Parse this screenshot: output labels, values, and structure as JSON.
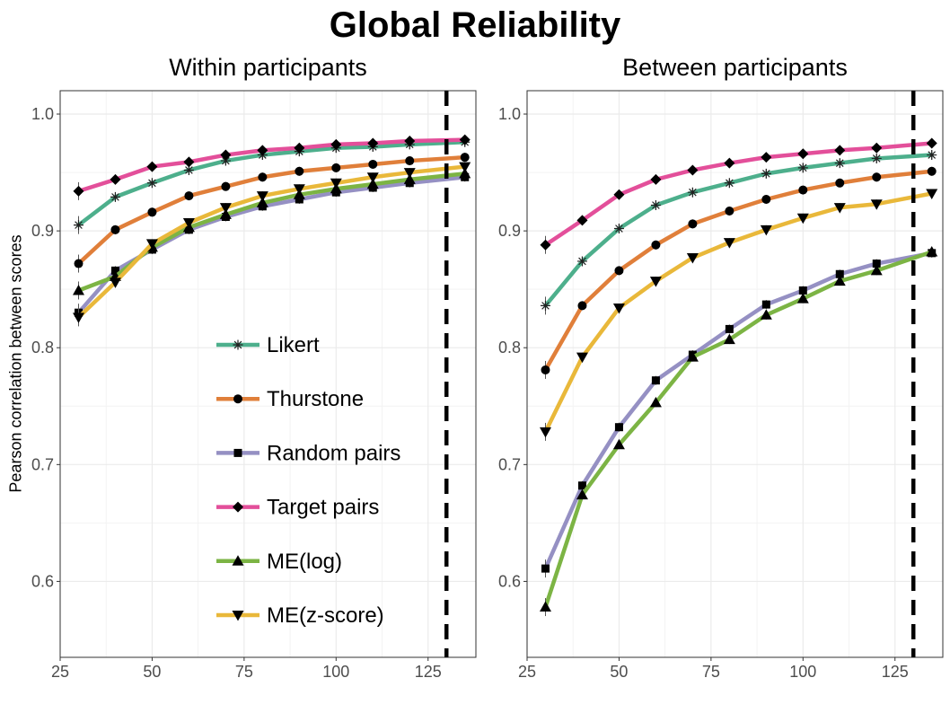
{
  "title": "Global Reliability",
  "ylabel": "Pearson correlation between scores",
  "colors": {
    "Likert": "#4daf8c",
    "Thurstone": "#e07f3a",
    "Random pairs": "#9590c3",
    "Target pairs": "#e34f9a",
    "ME(log)": "#7cb444",
    "ME(z-score)": "#e9b83a"
  },
  "markers": {
    "Likert": "asterisk",
    "Thurstone": "circle",
    "Random pairs": "square",
    "Target pairs": "diamond",
    "ME(log)": "triangle-up",
    "ME(z-score)": "triangle-down"
  },
  "legend": [
    "Likert",
    "Thurstone",
    "Random pairs",
    "Target pairs",
    "ME(log)",
    "ME(z-score)"
  ],
  "chart_data": [
    {
      "type": "line",
      "title": "Within participants",
      "xlim": [
        25,
        138
      ],
      "ylim": [
        0.535,
        1.02
      ],
      "xticks": [
        25,
        50,
        75,
        100,
        125
      ],
      "yticks": [
        0.6,
        0.7,
        0.8,
        0.9,
        1.0
      ],
      "ytick_labels": [
        "0.6",
        "0.7",
        "0.8",
        "0.9",
        "1.0"
      ],
      "vline": 130,
      "grid": true,
      "legend_position": "inside-bottom-right",
      "x": [
        30,
        40,
        50,
        60,
        70,
        80,
        90,
        100,
        110,
        120,
        135
      ],
      "series": [
        {
          "name": "Likert",
          "values": [
            0.905,
            0.929,
            0.941,
            0.952,
            0.96,
            0.965,
            0.968,
            0.971,
            0.972,
            0.974,
            0.976
          ]
        },
        {
          "name": "Thurstone",
          "values": [
            0.872,
            0.901,
            0.916,
            0.93,
            0.938,
            0.946,
            0.951,
            0.954,
            0.957,
            0.96,
            0.963
          ]
        },
        {
          "name": "Random pairs",
          "values": [
            0.83,
            0.866,
            0.884,
            0.901,
            0.912,
            0.921,
            0.927,
            0.933,
            0.937,
            0.941,
            0.946
          ]
        },
        {
          "name": "Target pairs",
          "values": [
            0.934,
            0.944,
            0.955,
            0.959,
            0.965,
            0.969,
            0.971,
            0.974,
            0.975,
            0.977,
            0.978
          ]
        },
        {
          "name": "ME(log)",
          "values": [
            0.849,
            0.861,
            0.886,
            0.903,
            0.914,
            0.924,
            0.931,
            0.936,
            0.94,
            0.944,
            0.949
          ]
        },
        {
          "name": "ME(z-score)",
          "values": [
            0.826,
            0.856,
            0.889,
            0.907,
            0.92,
            0.93,
            0.936,
            0.941,
            0.946,
            0.95,
            0.955
          ]
        }
      ]
    },
    {
      "type": "line",
      "title": "Between participants",
      "xlim": [
        25,
        138
      ],
      "ylim": [
        0.535,
        1.02
      ],
      "xticks": [
        25,
        50,
        75,
        100,
        125
      ],
      "yticks": [
        0.6,
        0.7,
        0.8,
        0.9,
        1.0
      ],
      "ytick_labels": [
        "0.6",
        "0.7",
        "0.8",
        "0.9",
        "1.0"
      ],
      "vline": 130,
      "grid": true,
      "x": [
        30,
        40,
        50,
        60,
        70,
        80,
        90,
        100,
        110,
        120,
        135
      ],
      "series": [
        {
          "name": "Likert",
          "values": [
            0.836,
            0.874,
            0.902,
            0.922,
            0.933,
            0.941,
            0.949,
            0.954,
            0.958,
            0.962,
            0.965
          ]
        },
        {
          "name": "Thurstone",
          "values": [
            0.781,
            0.836,
            0.866,
            0.888,
            0.906,
            0.917,
            0.927,
            0.935,
            0.941,
            0.946,
            0.951
          ]
        },
        {
          "name": "Random pairs",
          "values": [
            0.611,
            0.682,
            0.732,
            0.772,
            0.794,
            0.816,
            0.837,
            0.849,
            0.863,
            0.872,
            0.881
          ]
        },
        {
          "name": "Target pairs",
          "values": [
            0.888,
            0.909,
            0.931,
            0.944,
            0.952,
            0.958,
            0.963,
            0.966,
            0.969,
            0.971,
            0.975
          ]
        },
        {
          "name": "ME(log)",
          "values": [
            0.578,
            0.674,
            0.717,
            0.753,
            0.792,
            0.807,
            0.828,
            0.842,
            0.857,
            0.866,
            0.882
          ]
        },
        {
          "name": "ME(z-score)",
          "values": [
            0.728,
            0.792,
            0.834,
            0.857,
            0.877,
            0.89,
            0.901,
            0.911,
            0.92,
            0.923,
            0.932
          ]
        }
      ]
    }
  ]
}
